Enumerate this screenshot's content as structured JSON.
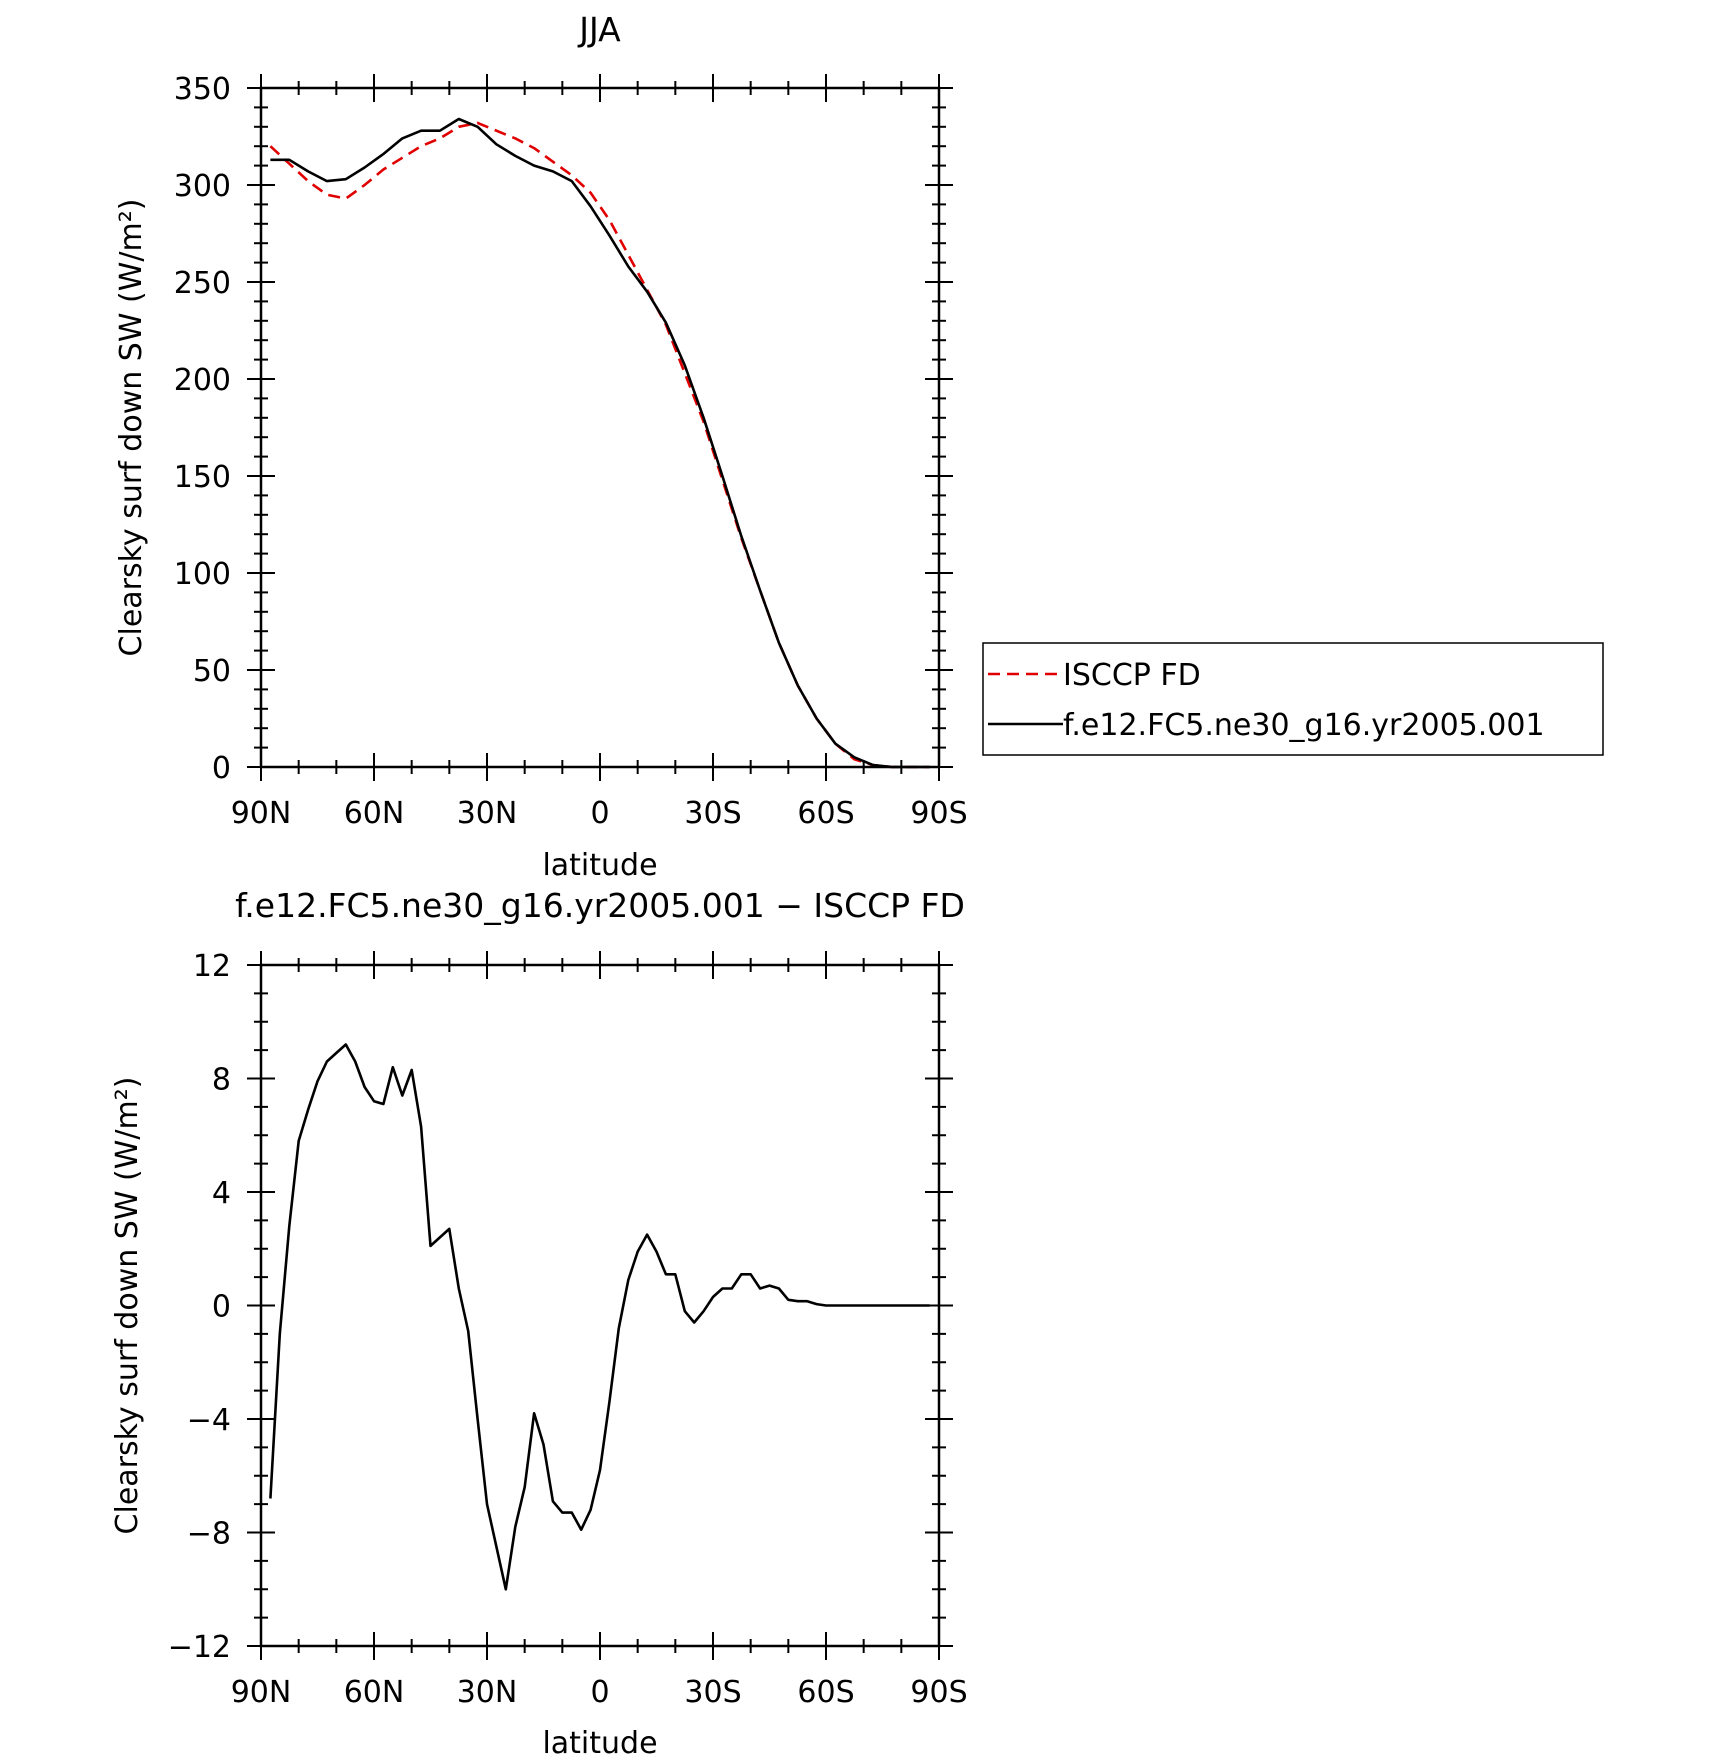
{
  "chart_data": [
    {
      "type": "line",
      "title": "JJA",
      "xlabel": "latitude",
      "ylabel": "Clearsky surf down SW (W/m²)",
      "xlim": [
        90,
        -90
      ],
      "ylim": [
        0,
        350
      ],
      "x_ticks": [
        {
          "value": 90,
          "label": "90N"
        },
        {
          "value": 60,
          "label": "60N"
        },
        {
          "value": 30,
          "label": "30N"
        },
        {
          "value": 0,
          "label": "0"
        },
        {
          "value": -30,
          "label": "30S"
        },
        {
          "value": -60,
          "label": "60S"
        },
        {
          "value": -90,
          "label": "90S"
        }
      ],
      "y_ticks": [
        {
          "value": 0,
          "label": "0"
        },
        {
          "value": 50,
          "label": "50"
        },
        {
          "value": 100,
          "label": "100"
        },
        {
          "value": 150,
          "label": "150"
        },
        {
          "value": 200,
          "label": "200"
        },
        {
          "value": 250,
          "label": "250"
        },
        {
          "value": 300,
          "label": "300"
        },
        {
          "value": 350,
          "label": "350"
        }
      ],
      "legend": {
        "placement": "right",
        "entries": [
          {
            "label": "ISCCP FD",
            "color": "#e00000",
            "style": "dashed"
          },
          {
            "label": "f.e12.FC5.ne30_g16.yr2005.001",
            "color": "#000000",
            "style": "solid"
          }
        ]
      },
      "series": [
        {
          "name": "ISCCP FD",
          "color": "#e00000",
          "style": "dashed",
          "x": [
            87.5,
            82.5,
            77.5,
            72.5,
            67.5,
            62.5,
            57.5,
            52.5,
            47.5,
            42.5,
            37.5,
            32.5,
            27.5,
            22.5,
            17.5,
            12.5,
            7.5,
            2.5,
            -2.5,
            -7.5,
            -12.5,
            -17.5,
            -22.5,
            -27.5,
            -32.5,
            -37.5,
            -42.5,
            -47.5,
            -52.5,
            -57.5,
            -62.5,
            -67.5,
            -72.5,
            -77.5,
            -82.5,
            -87.5
          ],
          "y": [
            320,
            311,
            302,
            295,
            293,
            300,
            308,
            314,
            320,
            324,
            330,
            332,
            328,
            324,
            319,
            312,
            305,
            296,
            282,
            264,
            246,
            228,
            203,
            178,
            148,
            118,
            91,
            64,
            42,
            25,
            12,
            4,
            1,
            0,
            0,
            0
          ]
        },
        {
          "name": "f.e12.FC5.ne30_g16.yr2005.001",
          "color": "#000000",
          "style": "solid",
          "x": [
            87.5,
            82.5,
            77.5,
            72.5,
            67.5,
            62.5,
            57.5,
            52.5,
            47.5,
            42.5,
            37.5,
            32.5,
            27.5,
            22.5,
            17.5,
            12.5,
            7.5,
            2.5,
            -2.5,
            -7.5,
            -12.5,
            -17.5,
            -22.5,
            -27.5,
            -32.5,
            -37.5,
            -42.5,
            -47.5,
            -52.5,
            -57.5,
            -62.5,
            -67.5,
            -72.5,
            -77.5,
            -82.5,
            -87.5
          ],
          "y": [
            313,
            313,
            307,
            302,
            303,
            309,
            316,
            324,
            328,
            328,
            334,
            330,
            321,
            315,
            310,
            307,
            302,
            289,
            274,
            258,
            245,
            229,
            207,
            180,
            150,
            119,
            91,
            64,
            42,
            25,
            12,
            5,
            1,
            0,
            0,
            0
          ]
        }
      ]
    },
    {
      "type": "line",
      "title": "f.e12.FC5.ne30_g16.yr2005.001 − ISCCP FD",
      "xlabel": "latitude",
      "ylabel": "Clearsky surf down SW (W/m²)",
      "xlim": [
        90,
        -90
      ],
      "ylim": [
        -12,
        12
      ],
      "x_ticks": [
        {
          "value": 90,
          "label": "90N"
        },
        {
          "value": 60,
          "label": "60N"
        },
        {
          "value": 30,
          "label": "30N"
        },
        {
          "value": 0,
          "label": "0"
        },
        {
          "value": -30,
          "label": "30S"
        },
        {
          "value": -60,
          "label": "60S"
        },
        {
          "value": -90,
          "label": "90S"
        }
      ],
      "y_ticks": [
        {
          "value": -12,
          "label": "−12"
        },
        {
          "value": -8,
          "label": "−8"
        },
        {
          "value": -4,
          "label": "−4"
        },
        {
          "value": 0,
          "label": "0"
        },
        {
          "value": 4,
          "label": "4"
        },
        {
          "value": 8,
          "label": "8"
        },
        {
          "value": 12,
          "label": "12"
        }
      ],
      "series": [
        {
          "color": "#000000",
          "style": "solid",
          "x": [
            87.5,
            85,
            82.5,
            80,
            77.5,
            75,
            72.5,
            70,
            67.5,
            65,
            62.5,
            60,
            57.5,
            55,
            52.5,
            50,
            47.5,
            45,
            42.5,
            40,
            37.5,
            35,
            32.5,
            30,
            27.5,
            25,
            22.5,
            20,
            17.5,
            15,
            12.5,
            10,
            7.5,
            5,
            2.5,
            0,
            -2.5,
            -5,
            -7.5,
            -10,
            -12.5,
            -15,
            -17.5,
            -20,
            -22.5,
            -25,
            -27.5,
            -30,
            -32.5,
            -35,
            -37.5,
            -40,
            -42.5,
            -45,
            -47.5,
            -50,
            -52.5,
            -55,
            -57.5,
            -60,
            -62.5,
            -65,
            -67.5,
            -70,
            -72.5,
            -75,
            -77.5,
            -80,
            -82.5,
            -85,
            -87.5
          ],
          "y": [
            -6.8,
            -1,
            2.8,
            5.8,
            6.9,
            7.9,
            8.6,
            8.9,
            9.2,
            8.6,
            7.7,
            7.2,
            7.1,
            8.4,
            7.4,
            8.3,
            6.3,
            2.1,
            2.4,
            2.7,
            0.6,
            -0.9,
            -4.0,
            -7.0,
            -8.5,
            -10.0,
            -7.8,
            -6.4,
            -3.8,
            -4.9,
            -6.9,
            -7.3,
            -7.3,
            -7.9,
            -7.2,
            -5.8,
            -3.4,
            -0.8,
            0.9,
            1.9,
            2.5,
            1.9,
            1.1,
            1.1,
            -0.2,
            -0.6,
            -0.2,
            0.3,
            0.6,
            0.6,
            1.1,
            1.1,
            0.6,
            0.7,
            0.6,
            0.2,
            0.15,
            0.15,
            0.05,
            0,
            0,
            0,
            0,
            0,
            0,
            0,
            0,
            0,
            0,
            0,
            0
          ]
        }
      ]
    }
  ]
}
